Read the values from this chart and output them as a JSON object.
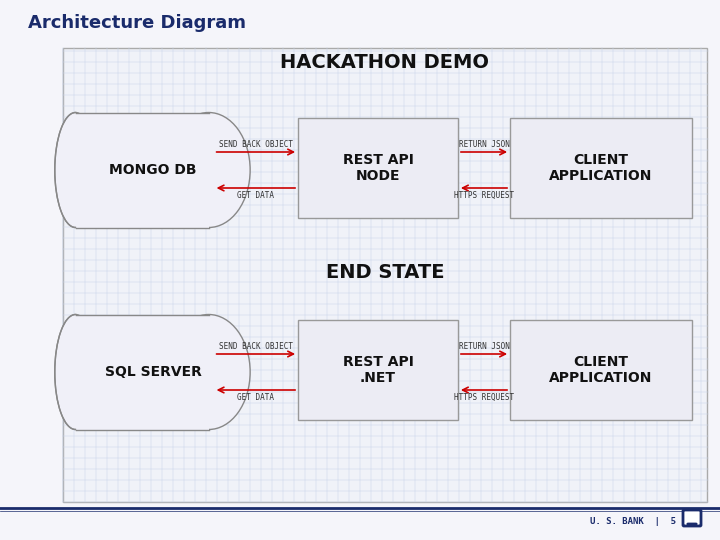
{
  "title": "Architecture Diagram",
  "title_color": "#1a2b6b",
  "bg_color": "#f5f5fa",
  "grid_color": "#c8d4e8",
  "section1_label": "HACKATHON DEMO",
  "section2_label": "END STATE",
  "db1_label": "MONGO DB",
  "db2_label": "SQL SERVER",
  "api1_label": "REST API\nNODE",
  "api2_label": "REST API\n.NET",
  "client1_label": "CLIENT\nAPPLICATION",
  "client2_label": "CLIENT\nAPPLICATION",
  "arrow_color": "#cc0000",
  "box_facecolor": "#ececf4",
  "box_edgecolor": "#999999",
  "db_facecolor": "#f0f0f8",
  "db_edgecolor": "#888888",
  "outer_box_facecolor": "#f0f2f8",
  "outer_box_color": "#aaaaaa",
  "label_send": "SEND BACK OBJECT",
  "label_get": "GET DATA",
  "label_return": "RETURN JSON",
  "label_https": "HTTPS REQUEST",
  "footer_line_color": "#1a2b6b",
  "footer_text": "U. S. BANK  |  5",
  "footer_text_color": "#1a2b6b",
  "section_text_color": "#111111",
  "db_text_color": "#111111",
  "label_fontsize": 5.5,
  "section_fontsize": 14,
  "db_fontsize": 10,
  "api_fontsize": 10
}
